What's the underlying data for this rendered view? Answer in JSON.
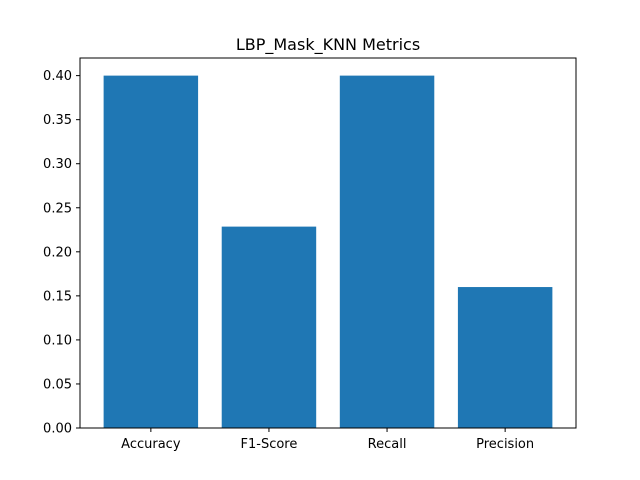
{
  "chart_data": {
    "type": "bar",
    "title": "LBP_Mask_KNN Metrics",
    "xlabel": "",
    "ylabel": "",
    "categories": [
      "Accuracy",
      "F1-Score",
      "Recall",
      "Precision"
    ],
    "values": [
      0.4,
      0.2286,
      0.4,
      0.16
    ],
    "ylim": [
      0,
      0.42
    ],
    "yticks": [
      0.0,
      0.05,
      0.1,
      0.15,
      0.2,
      0.25,
      0.3,
      0.35,
      0.4
    ],
    "ytick_labels": [
      "0.00",
      "0.05",
      "0.10",
      "0.15",
      "0.20",
      "0.25",
      "0.30",
      "0.35",
      "0.40"
    ],
    "bar_color": "#1f77b4",
    "grid": false
  }
}
